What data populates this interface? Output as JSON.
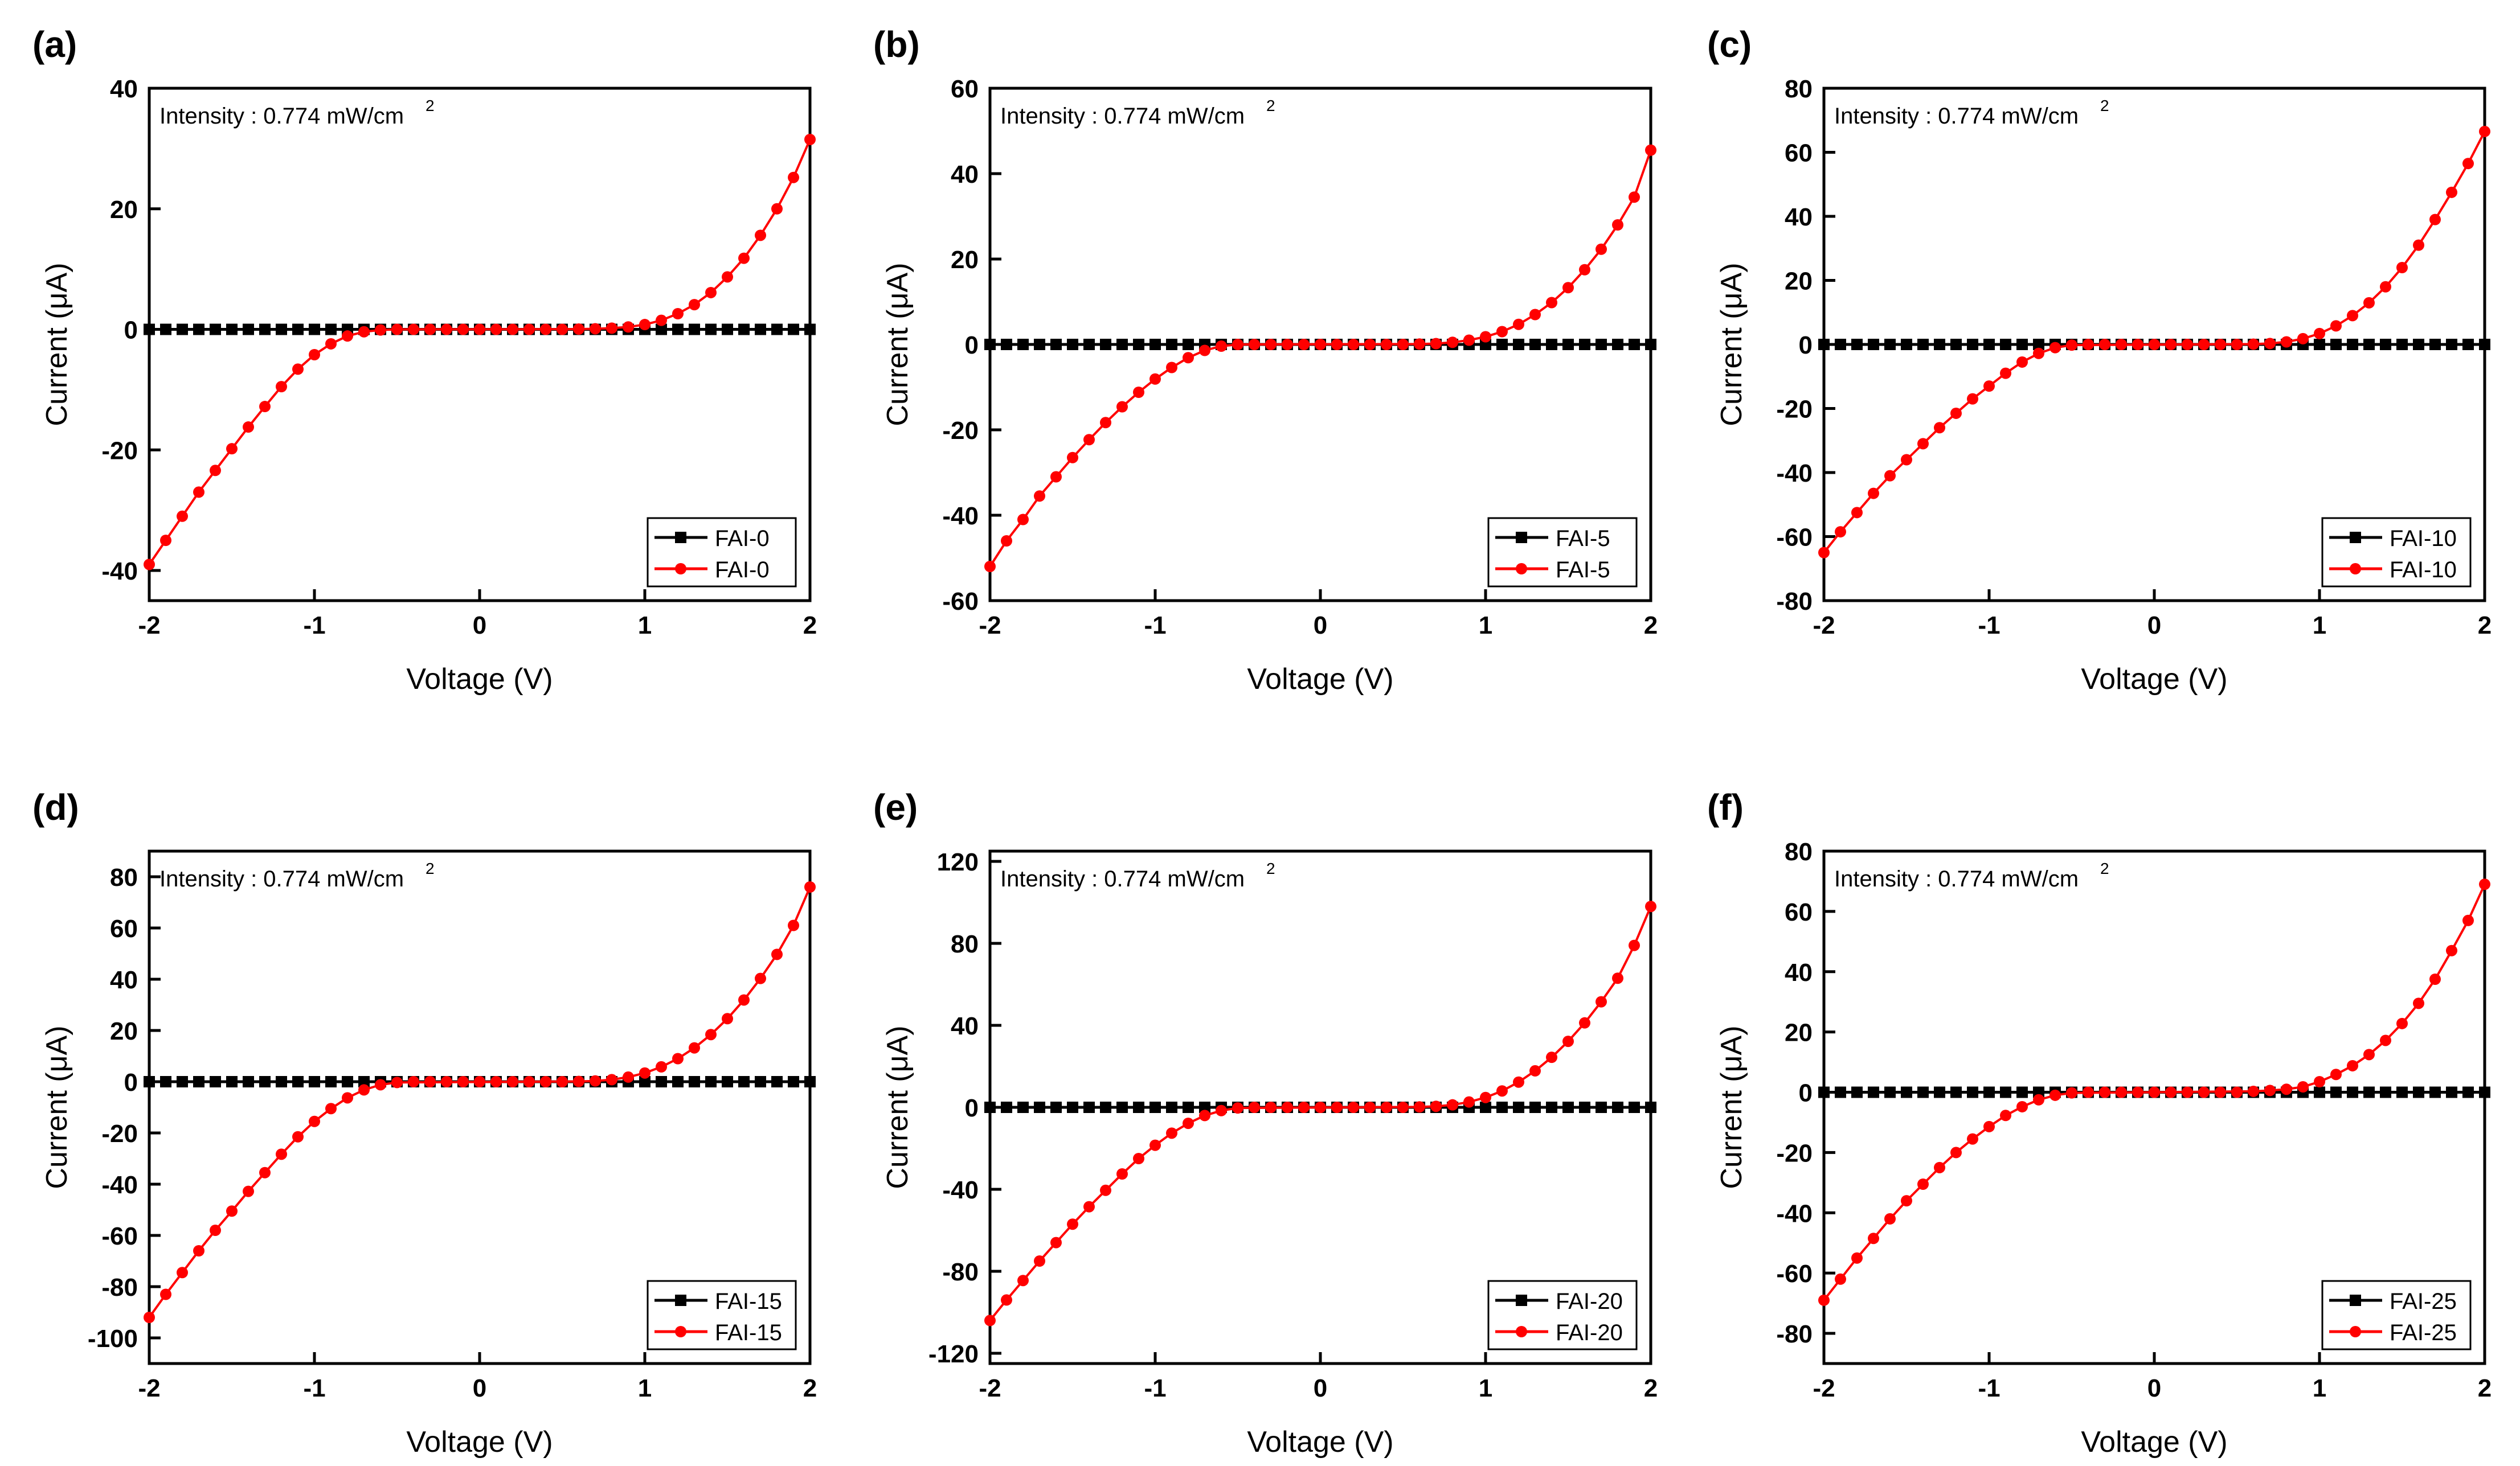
{
  "figure": {
    "panel_count": 6,
    "colors": {
      "dark": "#000000",
      "light": "#ff0000",
      "axis": "#000000",
      "background": "#ffffff"
    },
    "markers": {
      "dark": "square",
      "light": "circle"
    }
  },
  "chart_data": [
    {
      "type": "line",
      "panel_label": "(a)",
      "annotation": "Intensity : 0.774 mW/cm",
      "annotation_superscript": "2",
      "xlabel": "Voltage (V)",
      "ylabel": "Current (μA)",
      "xlim": [
        -2,
        2
      ],
      "ylim": [
        -45,
        40
      ],
      "xticks": [
        -2,
        -1,
        0,
        1,
        2
      ],
      "yticks": [
        -40,
        -20,
        0,
        20,
        40
      ],
      "legend_position": "bottom-right",
      "series": [
        {
          "name": "FAI-0",
          "color": "#000000",
          "marker": "square",
          "x": [
            -2,
            2
          ],
          "y": [
            0,
            0
          ]
        },
        {
          "name": "FAI-0",
          "color": "#ff0000",
          "marker": "circle",
          "x": [
            -2,
            -1.9,
            -1.8,
            -1.7,
            -1.6,
            -1.5,
            -1.4,
            -1.3,
            -1.2,
            -1.1,
            -1.0,
            -0.9,
            -0.8,
            -0.7,
            -0.6,
            -0.5,
            0.6,
            0.7,
            0.8,
            0.9,
            1.0,
            1.1,
            1.2,
            1.3,
            1.4,
            1.5,
            1.6,
            1.7,
            1.8,
            1.9,
            2.0
          ],
          "y": [
            -39,
            -35,
            -31,
            -27,
            -23.4,
            -19.8,
            -16.2,
            -12.8,
            -9.5,
            -6.6,
            -4.2,
            -2.4,
            -1.1,
            -0.4,
            -0.1,
            0,
            0.05,
            0.1,
            0.2,
            0.4,
            0.8,
            1.5,
            2.6,
            4.1,
            6.1,
            8.7,
            11.8,
            15.6,
            20.0,
            25.2,
            31.5
          ]
        }
      ]
    },
    {
      "type": "line",
      "panel_label": "(b)",
      "annotation": "Intensity : 0.774 mW/cm",
      "annotation_superscript": "2",
      "xlabel": "Voltage (V)",
      "ylabel": "Current (μA)",
      "xlim": [
        -2,
        2
      ],
      "ylim": [
        -60,
        60
      ],
      "xticks": [
        -2,
        -1,
        0,
        1,
        2
      ],
      "yticks": [
        -60,
        -40,
        -20,
        0,
        20,
        40,
        60
      ],
      "legend_position": "bottom-right",
      "series": [
        {
          "name": "FAI-5",
          "color": "#000000",
          "marker": "square",
          "x": [
            -2,
            2
          ],
          "y": [
            0,
            0
          ]
        },
        {
          "name": "FAI-5",
          "color": "#ff0000",
          "marker": "circle",
          "x": [
            -2,
            -1.9,
            -1.8,
            -1.7,
            -1.6,
            -1.5,
            -1.4,
            -1.3,
            -1.2,
            -1.1,
            -1.0,
            -0.9,
            -0.8,
            -0.7,
            -0.6,
            -0.5,
            0.6,
            0.7,
            0.8,
            0.9,
            1.0,
            1.1,
            1.2,
            1.3,
            1.4,
            1.5,
            1.6,
            1.7,
            1.8,
            1.9,
            2.0
          ],
          "y": [
            -52,
            -46,
            -41,
            -35.5,
            -31,
            -26.5,
            -22.3,
            -18.3,
            -14.6,
            -11.2,
            -8.1,
            -5.4,
            -3.1,
            -1.4,
            -0.4,
            0,
            0.1,
            0.2,
            0.5,
            1.0,
            1.8,
            3.0,
            4.7,
            7.0,
            9.8,
            13.3,
            17.5,
            22.3,
            28.0,
            34.5,
            45.5
          ]
        }
      ]
    },
    {
      "type": "line",
      "panel_label": "(c)",
      "annotation": "Intensity : 0.774 mW/cm",
      "annotation_superscript": "2",
      "xlabel": "Voltage (V)",
      "ylabel": "Current (μA)",
      "xlim": [
        -2,
        2
      ],
      "ylim": [
        -80,
        80
      ],
      "xticks": [
        -2,
        -1,
        0,
        1,
        2
      ],
      "yticks": [
        -80,
        -60,
        -40,
        -20,
        0,
        20,
        40,
        60,
        80
      ],
      "legend_position": "bottom-right",
      "series": [
        {
          "name": "FAI-10",
          "color": "#000000",
          "marker": "square",
          "x": [
            -2,
            2
          ],
          "y": [
            0,
            0
          ]
        },
        {
          "name": "FAI-10",
          "color": "#ff0000",
          "marker": "circle",
          "x": [
            -2,
            -1.9,
            -1.8,
            -1.7,
            -1.6,
            -1.5,
            -1.4,
            -1.3,
            -1.2,
            -1.1,
            -1.0,
            -0.9,
            -0.8,
            -0.7,
            -0.6,
            -0.5,
            0.6,
            0.7,
            0.8,
            0.9,
            1.0,
            1.1,
            1.2,
            1.3,
            1.4,
            1.5,
            1.6,
            1.7,
            1.8,
            1.9,
            2.0
          ],
          "y": [
            -65,
            -58.5,
            -52.5,
            -46.5,
            -41,
            -36,
            -31,
            -26,
            -21.5,
            -17,
            -13,
            -9,
            -5.5,
            -2.8,
            -1.0,
            -0.2,
            0.1,
            0.3,
            0.8,
            1.8,
            3.4,
            5.8,
            9.0,
            13.0,
            18.0,
            24.0,
            31.0,
            39.0,
            47.5,
            56.5,
            66.5
          ]
        }
      ]
    },
    {
      "type": "line",
      "panel_label": "(d)",
      "annotation": "Intensity : 0.774 mW/cm",
      "annotation_superscript": "2",
      "xlabel": "Voltage (V)",
      "ylabel": "Current (μA)",
      "xlim": [
        -2,
        2
      ],
      "ylim": [
        -110,
        90
      ],
      "xticks": [
        -2,
        -1,
        0,
        1,
        2
      ],
      "yticks": [
        -100,
        -80,
        -60,
        -40,
        -20,
        0,
        20,
        40,
        60,
        80
      ],
      "legend_position": "bottom-right",
      "series": [
        {
          "name": "FAI-15",
          "color": "#000000",
          "marker": "square",
          "x": [
            -2,
            2
          ],
          "y": [
            0,
            0
          ]
        },
        {
          "name": "FAI-15",
          "color": "#ff0000",
          "marker": "circle",
          "x": [
            -2,
            -1.9,
            -1.8,
            -1.7,
            -1.6,
            -1.5,
            -1.4,
            -1.3,
            -1.2,
            -1.1,
            -1.0,
            -0.9,
            -0.8,
            -0.7,
            -0.6,
            -0.5,
            0.6,
            0.7,
            0.8,
            0.9,
            1.0,
            1.1,
            1.2,
            1.3,
            1.4,
            1.5,
            1.6,
            1.7,
            1.8,
            1.9,
            2.0
          ],
          "y": [
            -92,
            -83,
            -74.5,
            -66,
            -58,
            -50.5,
            -42.8,
            -35.5,
            -28.3,
            -21.5,
            -15.5,
            -10.5,
            -6.3,
            -3.2,
            -1.2,
            -0.3,
            0.1,
            0.3,
            0.8,
            1.8,
            3.4,
            5.8,
            9.0,
            13.2,
            18.4,
            24.6,
            31.9,
            40.3,
            49.7,
            61.0,
            76.0
          ]
        }
      ]
    },
    {
      "type": "line",
      "panel_label": "(e)",
      "annotation": "Intensity : 0.774 mW/cm",
      "annotation_superscript": "2",
      "xlabel": "Voltage (V)",
      "ylabel": "Current (μA)",
      "xlim": [
        -2,
        2
      ],
      "ylim": [
        -125,
        125
      ],
      "xticks": [
        -2,
        -1,
        0,
        1,
        2
      ],
      "yticks": [
        -120,
        -80,
        -40,
        0,
        40,
        80,
        120
      ],
      "legend_position": "bottom-right",
      "series": [
        {
          "name": "FAI-20",
          "color": "#000000",
          "marker": "square",
          "x": [
            -2,
            2
          ],
          "y": [
            0,
            0
          ]
        },
        {
          "name": "FAI-20",
          "color": "#ff0000",
          "marker": "circle",
          "x": [
            -2,
            -1.9,
            -1.8,
            -1.7,
            -1.6,
            -1.5,
            -1.4,
            -1.3,
            -1.2,
            -1.1,
            -1.0,
            -0.9,
            -0.8,
            -0.7,
            -0.6,
            -0.5,
            0.6,
            0.7,
            0.8,
            0.9,
            1.0,
            1.1,
            1.2,
            1.3,
            1.4,
            1.5,
            1.6,
            1.7,
            1.8,
            1.9,
            2.0
          ],
          "y": [
            -104,
            -94,
            -84.5,
            -75,
            -66,
            -57,
            -48.5,
            -40.5,
            -32.5,
            -25,
            -18.5,
            -12.6,
            -7.8,
            -4.0,
            -1.6,
            -0.3,
            0.2,
            0.5,
            1.2,
            2.6,
            4.8,
            8.0,
            12.3,
            17.8,
            24.4,
            32.2,
            41.2,
            51.5,
            63.0,
            79.0,
            98.0
          ]
        }
      ]
    },
    {
      "type": "line",
      "panel_label": "(f)",
      "annotation": "Intensity : 0.774 mW/cm",
      "annotation_superscript": "2",
      "xlabel": "Voltage (V)",
      "ylabel": "Current (μA)",
      "xlim": [
        -2,
        2
      ],
      "ylim": [
        -90,
        80
      ],
      "xticks": [
        -2,
        -1,
        0,
        1,
        2
      ],
      "yticks": [
        -80,
        -60,
        -40,
        -20,
        0,
        20,
        40,
        60,
        80
      ],
      "legend_position": "bottom-right",
      "series": [
        {
          "name": "FAI-25",
          "color": "#000000",
          "marker": "square",
          "x": [
            -2,
            2
          ],
          "y": [
            0,
            0
          ]
        },
        {
          "name": "FAI-25",
          "color": "#ff0000",
          "marker": "circle",
          "x": [
            -2,
            -1.9,
            -1.8,
            -1.7,
            -1.6,
            -1.5,
            -1.4,
            -1.3,
            -1.2,
            -1.1,
            -1.0,
            -0.9,
            -0.8,
            -0.7,
            -0.6,
            -0.5,
            0.6,
            0.7,
            0.8,
            0.9,
            1.0,
            1.1,
            1.2,
            1.3,
            1.4,
            1.5,
            1.6,
            1.7,
            1.8,
            1.9,
            2.0
          ],
          "y": [
            -69,
            -62,
            -55,
            -48.5,
            -42,
            -36,
            -30.5,
            -25,
            -20,
            -15.5,
            -11.4,
            -7.7,
            -4.8,
            -2.5,
            -1.0,
            -0.2,
            0.3,
            0.6,
            1.0,
            1.8,
            3.5,
            5.9,
            8.8,
            12.5,
            17.2,
            22.8,
            29.5,
            37.5,
            47.0,
            57.0,
            69.0
          ]
        }
      ]
    }
  ]
}
